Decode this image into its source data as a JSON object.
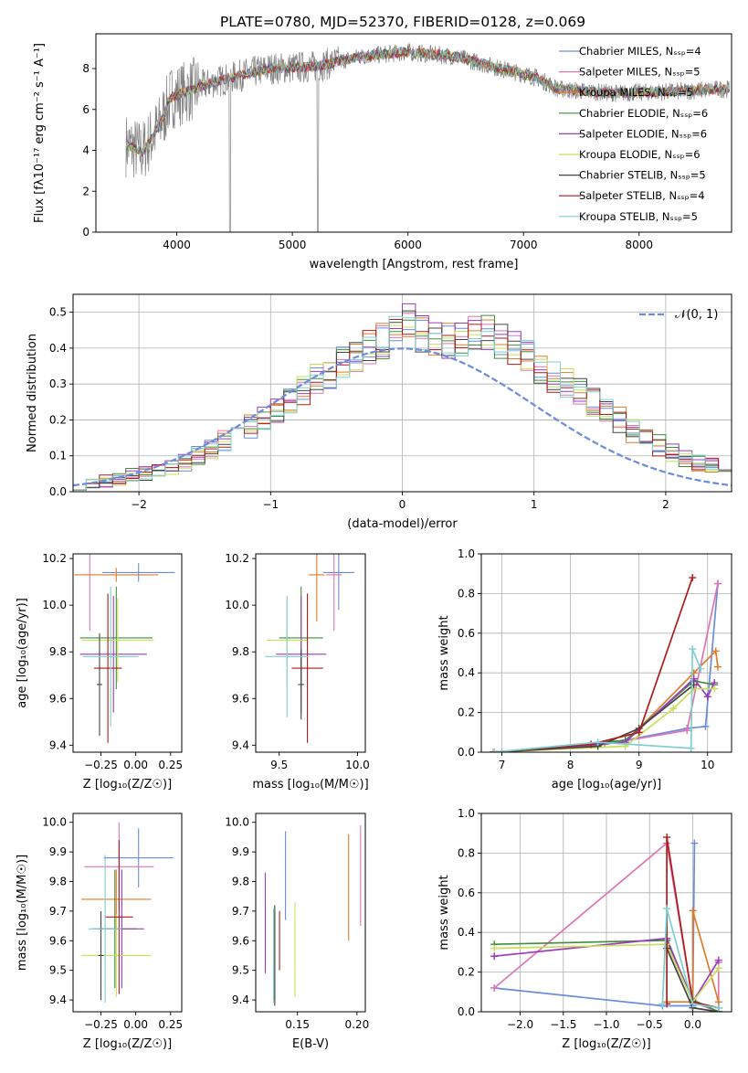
{
  "title": "PLATE=0780, MJD=52370, FIBERID=0128, z=0.069",
  "colors": {
    "cm": "#6a8cdc",
    "sm": "#dd75b5",
    "km": "#e07b2a",
    "ce": "#3f8f38",
    "se": "#9a3bbf",
    "ke": "#c8df5a",
    "cs": "#444444",
    "ss": "#b01a1a",
    "ks": "#7dcfcf",
    "data": "#808080",
    "normal": "#6a8cdc"
  },
  "chart_data": [
    {
      "id": "spectrum",
      "type": "line",
      "xlabel": "wavelength [Angstrom, rest frame]",
      "ylabel": "Flux [fλ10⁻¹⁷ erg cm⁻² s⁻¹ A⁻¹]",
      "xlim": [
        3300,
        8800
      ],
      "ylim": [
        0,
        9.7
      ],
      "xticks": [
        4000,
        5000,
        6000,
        7000,
        8000
      ],
      "yticks": [
        0,
        2,
        4,
        6,
        8
      ],
      "continuum": {
        "x": [
          3550,
          3700,
          3850,
          3950,
          4100,
          4300,
          4500,
          4800,
          5200,
          5600,
          6000,
          6400,
          6800,
          7100,
          7300,
          7500,
          7800,
          8100,
          8400,
          8700
        ],
        "y": [
          4.3,
          3.9,
          5.2,
          6.6,
          6.9,
          7.3,
          7.6,
          8.0,
          8.1,
          8.6,
          8.8,
          8.6,
          8.0,
          7.6,
          7.0,
          6.9,
          6.8,
          6.85,
          6.9,
          7.0
        ]
      },
      "legend": [
        {
          "key": "cm",
          "label": "Chabrier MILES, Nₛₛₚ=4"
        },
        {
          "key": "sm",
          "label": "Salpeter MILES, Nₛₛₚ=5"
        },
        {
          "key": "km",
          "label": "Kroupa MILES, Nₛₛₚ=5"
        },
        {
          "key": "ce",
          "label": "Chabrier ELODIE, Nₛₛₚ=6"
        },
        {
          "key": "se",
          "label": "Salpeter ELODIE, Nₛₛₚ=6"
        },
        {
          "key": "ke",
          "label": "Kroupa ELODIE, Nₛₛₚ=6"
        },
        {
          "key": "cs",
          "label": "Chabrier STELIB, Nₛₛₚ=5"
        },
        {
          "key": "ss",
          "label": "Salpeter STELIB, Nₛₛₚ=4"
        },
        {
          "key": "ks",
          "label": "Kroupa STELIB, Nₛₛₚ=5"
        }
      ]
    },
    {
      "id": "residuals",
      "type": "histogram",
      "xlabel": "(data-model)/error",
      "ylabel": "Normed distribution",
      "xlim": [
        -2.5,
        2.5
      ],
      "ylim": [
        0,
        0.55
      ],
      "xticks": [
        -2,
        -1,
        0,
        1,
        2
      ],
      "yticks": [
        0.0,
        0.1,
        0.2,
        0.3,
        0.4,
        0.5
      ],
      "grid": true,
      "legend_position": "top-right",
      "normal_label": "𝒩(0, 1)",
      "bin_width": 0.1,
      "bin_start": -2.5,
      "values": [
        0.02,
        0.025,
        0.03,
        0.035,
        0.045,
        0.05,
        0.06,
        0.07,
        0.08,
        0.1,
        0.12,
        0.14,
        0.16,
        0.18,
        0.21,
        0.23,
        0.26,
        0.28,
        0.31,
        0.33,
        0.36,
        0.38,
        0.4,
        0.42,
        0.45,
        0.47,
        0.44,
        0.42,
        0.42,
        0.43,
        0.45,
        0.44,
        0.42,
        0.4,
        0.38,
        0.35,
        0.32,
        0.3,
        0.28,
        0.25,
        0.22,
        0.2,
        0.17,
        0.15,
        0.13,
        0.11,
        0.09,
        0.08,
        0.07,
        0.06
      ]
    },
    {
      "id": "age-vs-z",
      "type": "errorbar",
      "xlabel": "Z [log₁₀(Z/Z☉)]",
      "ylabel": "age  [log₁₀(age/yr)]",
      "xlim": [
        -0.45,
        0.33
      ],
      "ylim": [
        9.37,
        10.22
      ],
      "xticks": [
        -0.25,
        0.0,
        0.25
      ],
      "yticks": [
        9.4,
        9.6,
        9.8,
        10.0,
        10.2
      ],
      "points": [
        {
          "key": "cm",
          "x": 0.02,
          "y": 10.14,
          "xerr": 0.26,
          "yerr": 0.04
        },
        {
          "key": "sm",
          "x": -0.33,
          "y": 10.13,
          "xerr": 0.04,
          "yerr": 0.24
        },
        {
          "key": "km",
          "x": -0.14,
          "y": 10.13,
          "xerr": 0.3,
          "yerr": 0.03
        },
        {
          "key": "ce",
          "x": -0.14,
          "y": 9.86,
          "xerr": 0.26,
          "yerr": 0.22
        },
        {
          "key": "se",
          "x": -0.16,
          "y": 9.79,
          "xerr": 0.24,
          "yerr": 0.25
        },
        {
          "key": "ke",
          "x": -0.13,
          "y": 9.85,
          "xerr": 0.26,
          "yerr": 0.18
        },
        {
          "key": "cs",
          "x": -0.26,
          "y": 9.66,
          "xerr": 0.02,
          "yerr": 0.22
        },
        {
          "key": "ss",
          "x": -0.2,
          "y": 9.73,
          "xerr": 0.1,
          "yerr": 0.32
        },
        {
          "key": "ks",
          "x": -0.18,
          "y": 9.78,
          "xerr": 0.2,
          "yerr": 0.3
        }
      ]
    },
    {
      "id": "age-vs-mass",
      "type": "errorbar",
      "xlabel": "mass [log₁₀(M/M☉)]",
      "ylabel": "",
      "xlim": [
        9.35,
        10.05
      ],
      "ylim": [
        9.37,
        10.22
      ],
      "xticks": [
        9.5,
        10.0
      ],
      "yticks": [
        9.4,
        9.6,
        9.8,
        10.0,
        10.2
      ],
      "points": [
        {
          "key": "cm",
          "x": 9.88,
          "y": 10.14,
          "xerr": 0.1,
          "yerr": 0.16
        },
        {
          "key": "sm",
          "x": 9.85,
          "y": 10.13,
          "xerr": 0.05,
          "yerr": 0.24
        },
        {
          "key": "km",
          "x": 9.74,
          "y": 10.13,
          "xerr": 0.05,
          "yerr": 0.2
        },
        {
          "key": "ce",
          "x": 9.64,
          "y": 9.86,
          "xerr": 0.14,
          "yerr": 0.22
        },
        {
          "key": "se",
          "x": 9.64,
          "y": 9.79,
          "xerr": 0.16,
          "yerr": 0.25
        },
        {
          "key": "ke",
          "x": 9.55,
          "y": 9.85,
          "xerr": 0.13,
          "yerr": 0.18
        },
        {
          "key": "cs",
          "x": 9.64,
          "y": 9.66,
          "xerr": 0.02,
          "yerr": 0.15
        },
        {
          "key": "ss",
          "x": 9.68,
          "y": 9.73,
          "xerr": 0.1,
          "yerr": 0.32
        },
        {
          "key": "ks",
          "x": 9.55,
          "y": 9.78,
          "xerr": 0.14,
          "yerr": 0.26
        }
      ]
    },
    {
      "id": "weight-vs-age",
      "type": "line",
      "xlabel": "age  [log₁₀(age/yr)]",
      "ylabel": "mass weight",
      "xlim": [
        6.7,
        10.35
      ],
      "ylim": [
        0,
        1
      ],
      "xticks": [
        7,
        8,
        9,
        10
      ],
      "yticks": [
        0.0,
        0.2,
        0.4,
        0.6,
        0.8,
        1.0
      ],
      "grid": true,
      "series": [
        {
          "key": "cm",
          "x": [
            6.88,
            8.5,
            9.7,
            9.97,
            10.15
          ],
          "y": [
            0.0,
            0.04,
            0.12,
            0.13,
            0.85
          ]
        },
        {
          "key": "sm",
          "x": [
            6.88,
            8.5,
            9.7,
            10.15
          ],
          "y": [
            0.0,
            0.04,
            0.11,
            0.85
          ]
        },
        {
          "key": "km",
          "x": [
            6.88,
            8.8,
            9.8,
            10.12,
            10.15
          ],
          "y": [
            0.0,
            0.05,
            0.4,
            0.51,
            0.43
          ]
        },
        {
          "key": "ce",
          "x": [
            6.88,
            8.8,
            9.8,
            10.1
          ],
          "y": [
            0.0,
            0.06,
            0.36,
            0.34
          ]
        },
        {
          "key": "se",
          "x": [
            6.88,
            8.8,
            9.8,
            10.0,
            10.1
          ],
          "y": [
            0.0,
            0.05,
            0.37,
            0.28,
            0.35
          ]
        },
        {
          "key": "ke",
          "x": [
            6.88,
            8.8,
            9.5,
            9.8,
            10.1
          ],
          "y": [
            0.0,
            0.03,
            0.22,
            0.32,
            0.32
          ]
        },
        {
          "key": "cs",
          "x": [
            6.88,
            8.4,
            9.0,
            9.8
          ],
          "y": [
            0.0,
            0.03,
            0.12,
            0.34
          ]
        },
        {
          "key": "ss",
          "x": [
            6.88,
            8.3,
            9.0,
            9.78
          ],
          "y": [
            0.0,
            0.04,
            0.1,
            0.88
          ]
        },
        {
          "key": "ks",
          "x": [
            6.88,
            8.4,
            9.76,
            9.78,
            9.9
          ],
          "y": [
            0.0,
            0.05,
            0.02,
            0.52,
            0.42
          ]
        }
      ]
    },
    {
      "id": "mass-vs-z",
      "type": "errorbar",
      "xlabel": "Z [log₁₀(Z/Z☉)]",
      "ylabel": "mass [log₁₀(M/M☉)]",
      "xlim": [
        -0.45,
        0.33
      ],
      "ylim": [
        9.36,
        10.03
      ],
      "xticks": [
        -0.25,
        0.0,
        0.25
      ],
      "yticks": [
        9.4,
        9.5,
        9.6,
        9.7,
        9.8,
        9.9,
        10.0
      ],
      "points": [
        {
          "key": "cm",
          "x": 0.02,
          "y": 9.88,
          "xerr": 0.25,
          "yerr": 0.1
        },
        {
          "key": "sm",
          "x": -0.12,
          "y": 9.85,
          "xerr": 0.25,
          "yerr": 0.15
        },
        {
          "key": "km",
          "x": -0.14,
          "y": 9.74,
          "xerr": 0.25,
          "yerr": 0.1
        },
        {
          "key": "ce",
          "x": -0.15,
          "y": 9.64,
          "xerr": 0.16,
          "yerr": 0.2
        },
        {
          "key": "se",
          "x": -0.1,
          "y": 9.64,
          "xerr": 0.16,
          "yerr": 0.2
        },
        {
          "key": "ke",
          "x": -0.14,
          "y": 9.55,
          "xerr": 0.25,
          "yerr": 0.14
        },
        {
          "key": "cs",
          "x": -0.25,
          "y": 9.55,
          "xerr": 0.02,
          "yerr": 0.15
        },
        {
          "key": "ss",
          "x": -0.12,
          "y": 9.68,
          "xerr": 0.1,
          "yerr": 0.26
        },
        {
          "key": "ks",
          "x": -0.22,
          "y": 9.64,
          "xerr": 0.12,
          "yerr": 0.25
        }
      ]
    },
    {
      "id": "mass-vs-ebv",
      "type": "errorbar",
      "xlabel": "E(B-V)",
      "ylabel": "",
      "xlim": [
        0.115,
        0.207
      ],
      "ylim": [
        9.36,
        10.03
      ],
      "xticks": [
        0.15,
        0.2
      ],
      "yticks": [
        9.4,
        9.5,
        9.6,
        9.7,
        9.8,
        9.9,
        10.0
      ],
      "points": [
        {
          "key": "cm",
          "x": 0.14,
          "y": 9.82,
          "xerr": 0.0,
          "yerr": 0.15
        },
        {
          "key": "sm",
          "x": 0.203,
          "y": 9.82,
          "xerr": 0.0,
          "yerr": 0.17
        },
        {
          "key": "km",
          "x": 0.193,
          "y": 9.78,
          "xerr": 0.0,
          "yerr": 0.18
        },
        {
          "key": "ce",
          "x": 0.131,
          "y": 9.55,
          "xerr": 0.0,
          "yerr": 0.15
        },
        {
          "key": "se",
          "x": 0.123,
          "y": 9.66,
          "xerr": 0.0,
          "yerr": 0.17
        },
        {
          "key": "ke",
          "x": 0.148,
          "y": 9.57,
          "xerr": 0.0,
          "yerr": 0.16
        },
        {
          "key": "cs",
          "x": 0.131,
          "y": 9.55,
          "xerr": 0.0,
          "yerr": 0.17
        },
        {
          "key": "ss",
          "x": 0.135,
          "y": 9.6,
          "xerr": 0.0,
          "yerr": 0.1
        },
        {
          "key": "ks",
          "x": 0.13,
          "y": 9.55,
          "xerr": 0.0,
          "yerr": 0.16
        }
      ]
    },
    {
      "id": "weight-vs-z",
      "type": "line",
      "xlabel": "Z [log₁₀(Z/Z☉)]",
      "ylabel": "mass weight",
      "xlim": [
        -2.45,
        0.45
      ],
      "ylim": [
        0,
        1
      ],
      "xticks": [
        -2.0,
        -1.5,
        -1.0,
        -0.5,
        0.0
      ],
      "yticks": [
        0.0,
        0.2,
        0.4,
        0.6,
        0.8,
        1.0
      ],
      "grid": true,
      "series": [
        {
          "key": "cm",
          "x": [
            -2.3,
            -0.35,
            -0.0,
            0.02,
            0.0,
            0.3
          ],
          "y": [
            0.12,
            0.03,
            0.03,
            0.85,
            0.05,
            0.0
          ]
        },
        {
          "key": "sm",
          "x": [
            -2.3,
            -0.3,
            0.0,
            0.3,
            0.3
          ],
          "y": [
            0.12,
            0.85,
            0.05,
            0.0,
            0.25
          ]
        },
        {
          "key": "km",
          "x": [
            -0.3,
            0.0,
            0.0,
            0.3,
            0.3
          ],
          "y": [
            0.05,
            0.05,
            0.51,
            0.05,
            0.0
          ]
        },
        {
          "key": "ce",
          "x": [
            -2.3,
            -0.3,
            0.0,
            0.3
          ],
          "y": [
            0.34,
            0.36,
            0.06,
            0.0
          ]
        },
        {
          "key": "se",
          "x": [
            -2.3,
            -0.3,
            0.0,
            0.3
          ],
          "y": [
            0.28,
            0.37,
            0.05,
            0.26
          ]
        },
        {
          "key": "ke",
          "x": [
            -2.3,
            -0.3,
            0.0,
            0.3
          ],
          "y": [
            0.32,
            0.34,
            0.05,
            0.22
          ]
        },
        {
          "key": "cs",
          "x": [
            -0.3,
            0.0,
            0.3
          ],
          "y": [
            0.32,
            0.02,
            0.0
          ]
        },
        {
          "key": "ss",
          "x": [
            -0.3,
            -0.3,
            0.0,
            0.3
          ],
          "y": [
            0.04,
            0.88,
            0.05,
            0.02
          ]
        },
        {
          "key": "ks",
          "x": [
            -0.35,
            -0.3,
            0.0,
            0.3
          ],
          "y": [
            0.04,
            0.52,
            0.04,
            0.02
          ]
        }
      ]
    }
  ]
}
